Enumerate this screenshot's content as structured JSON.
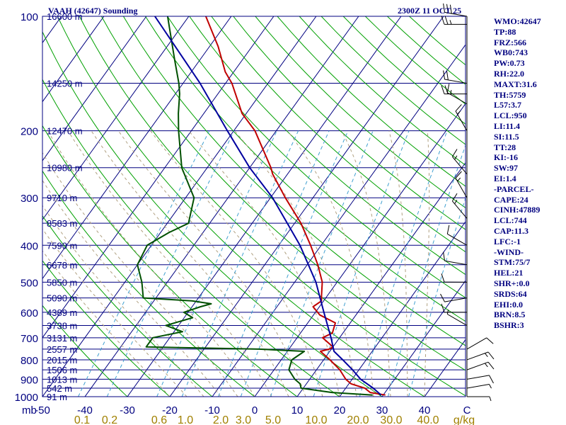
{
  "header": {
    "station": "VAAH (42647) Sounding",
    "time": "2300Z 11 OCT 25"
  },
  "indices": [
    "WMO:42647",
    "TP:88",
    "FRZ:566",
    "WB0:743",
    "PW:0.73",
    "RH:22.0",
    "MAXT:31.6",
    "TH:5759",
    "L57:3.7",
    "LCL:950",
    "LI:11.4",
    "SI:11.5",
    "TT:28",
    "KI:-16",
    "SW:97",
    "EI:1.4",
    "-PARCEL-",
    "CAPE:24",
    "CINH:47889",
    "LCL:744",
    "CAP:11.3",
    "LFC:-1",
    "-WIND-",
    "STM:75/7",
    "HEL:21",
    "SHR+:0.0",
    "SRDS:64",
    "EHI:0.0",
    "BRN:8.5",
    "BSHR:3"
  ],
  "colors": {
    "axis": "#000080",
    "isobar": "#000080",
    "isotherm": "#000080",
    "dry_adiabat": "#00a000",
    "moist_adiabat": "#b0a080",
    "mixing_ratio": "#40a0d0",
    "temperature": "#c00000",
    "dewpoint": "#005000",
    "parcel": "#0000a0",
    "text": "#000080",
    "mixing_labels": "#a08000"
  },
  "chart_data": {
    "type": "skew-t",
    "title": "VAAH (42647) Sounding",
    "subtitle": "2300Z 11 OCT 25",
    "xlim": [
      -50,
      50
    ],
    "ylim": [
      1000,
      100
    ],
    "y_scale": "log",
    "x_unit_label": "C",
    "y_unit_label": "mb",
    "mixing_unit_label": "g/kg",
    "pressure_ticks": [
      "100",
      "200",
      "300",
      "400",
      "500",
      "600",
      "700",
      "800",
      "900",
      "1000"
    ],
    "temp_ticks": [
      "-50",
      "-40",
      "-30",
      "-20",
      "-10",
      "0",
      "10",
      "20",
      "30",
      "40",
      "C"
    ],
    "temp_tick_values": [
      -50,
      -40,
      -30,
      -20,
      -10,
      0,
      10,
      20,
      30,
      40,
      50
    ],
    "mixing_ratio_labels": [
      "0.1",
      "0.2",
      "0.6",
      "1.0",
      "2.0",
      "3.0",
      "5.0",
      "10.0",
      "20.0",
      "30.0",
      "40.0",
      "g/kg"
    ],
    "height_labels": [
      {
        "p": 100,
        "label": "16600 m"
      },
      {
        "p": 150,
        "label": "14250 m"
      },
      {
        "p": 200,
        "label": "12470 m"
      },
      {
        "p": 250,
        "label": "10980 m"
      },
      {
        "p": 300,
        "label": "9710 m"
      },
      {
        "p": 350,
        "label": "8583 m"
      },
      {
        "p": 400,
        "label": "7590 m"
      },
      {
        "p": 450,
        "label": "6678 m"
      },
      {
        "p": 500,
        "label": "5850 m"
      },
      {
        "p": 550,
        "label": "5090 m"
      },
      {
        "p": 600,
        "label": "4389 m"
      },
      {
        "p": 650,
        "label": "3738 m"
      },
      {
        "p": 700,
        "label": "3131 m"
      },
      {
        "p": 750,
        "label": "2557 m"
      },
      {
        "p": 800,
        "label": "2015 m"
      },
      {
        "p": 850,
        "label": "1506 m"
      },
      {
        "p": 900,
        "label": "1013 m"
      },
      {
        "p": 950,
        "label": "542 m"
      },
      {
        "p": 1000,
        "label": "91 m"
      }
    ],
    "series": [
      {
        "name": "temperature",
        "points": [
          [
            990,
            30.5
          ],
          [
            975,
            26.5
          ],
          [
            950,
            24.5
          ],
          [
            925,
            20.5
          ],
          [
            900,
            18.5
          ],
          [
            850,
            15.5
          ],
          [
            800,
            11.5
          ],
          [
            760,
            7.8
          ],
          [
            750,
            9.5
          ],
          [
            740,
            10.0
          ],
          [
            700,
            6.0
          ],
          [
            680,
            7.5
          ],
          [
            640,
            6.5
          ],
          [
            610,
            1.5
          ],
          [
            580,
            -1.5
          ],
          [
            560,
            -0.5
          ],
          [
            540,
            -1.5
          ],
          [
            500,
            -3.5
          ],
          [
            450,
            -7.5
          ],
          [
            400,
            -12.5
          ],
          [
            350,
            -18.5
          ],
          [
            300,
            -26.5
          ],
          [
            260,
            -33.5
          ],
          [
            250,
            -35.0
          ],
          [
            200,
            -45.0
          ],
          [
            180,
            -51.0
          ],
          [
            150,
            -58.5
          ],
          [
            140,
            -62.0
          ],
          [
            120,
            -68.0
          ],
          [
            100,
            -76.0
          ]
        ]
      },
      {
        "name": "dewpoint",
        "points": [
          [
            990,
            27.5
          ],
          [
            975,
            17.5
          ],
          [
            950,
            9.5
          ],
          [
            925,
            8.5
          ],
          [
            900,
            6.5
          ],
          [
            850,
            3.5
          ],
          [
            800,
            2.5
          ],
          [
            760,
            4.0
          ],
          [
            750,
            -7.0
          ],
          [
            740,
            -34.0
          ],
          [
            700,
            -34.0
          ],
          [
            675,
            -28.0
          ],
          [
            650,
            -33.0
          ],
          [
            620,
            -28.0
          ],
          [
            600,
            -31.0
          ],
          [
            580,
            -28.0
          ],
          [
            570,
            -26.0
          ],
          [
            560,
            -31.0
          ],
          [
            550,
            -43.0
          ],
          [
            500,
            -46.0
          ],
          [
            450,
            -50.0
          ],
          [
            400,
            -51.0
          ],
          [
            370,
            -48.0
          ],
          [
            350,
            -45.0
          ],
          [
            300,
            -48.0
          ],
          [
            250,
            -56.0
          ],
          [
            200,
            -63.0
          ],
          [
            180,
            -66.0
          ],
          [
            160,
            -69.0
          ],
          [
            150,
            -71.0
          ],
          [
            130,
            -76.0
          ],
          [
            100,
            -85.0
          ]
        ]
      },
      {
        "name": "parcel",
        "points": [
          [
            990,
            29.5
          ],
          [
            950,
            26.5
          ],
          [
            900,
            22.0
          ],
          [
            850,
            18.5
          ],
          [
            800,
            14.5
          ],
          [
            760,
            11.0
          ],
          [
            700,
            8.0
          ],
          [
            600,
            2.0
          ],
          [
            500,
            -5.0
          ],
          [
            400,
            -15.0
          ],
          [
            300,
            -29.5
          ],
          [
            250,
            -40.0
          ],
          [
            200,
            -51.5
          ],
          [
            150,
            -66.0
          ],
          [
            100,
            -88.0
          ]
        ]
      }
    ],
    "wind_barbs": [
      {
        "p": 100,
        "dir": 280,
        "speed": 30
      },
      {
        "p": 105,
        "dir": 270,
        "speed": 25
      },
      {
        "p": 150,
        "dir": 280,
        "speed": 20
      },
      {
        "p": 160,
        "dir": 270,
        "speed": 20
      },
      {
        "p": 170,
        "dir": 300,
        "speed": 15
      },
      {
        "p": 200,
        "dir": 330,
        "speed": 15
      },
      {
        "p": 260,
        "dir": 320,
        "speed": 15
      },
      {
        "p": 300,
        "dir": 330,
        "speed": 15
      },
      {
        "p": 340,
        "dir": 320,
        "speed": 15
      },
      {
        "p": 400,
        "dir": 300,
        "speed": 10
      },
      {
        "p": 450,
        "dir": 280,
        "speed": 10
      },
      {
        "p": 500,
        "dir": 270,
        "speed": 10
      },
      {
        "p": 550,
        "dir": 260,
        "speed": 10
      },
      {
        "p": 600,
        "dir": 270,
        "speed": 10
      },
      {
        "p": 650,
        "dir": 300,
        "speed": 5
      },
      {
        "p": 750,
        "dir": 60,
        "speed": 10
      },
      {
        "p": 800,
        "dir": 70,
        "speed": 15
      },
      {
        "p": 850,
        "dir": 70,
        "speed": 15
      },
      {
        "p": 900,
        "dir": 80,
        "speed": 10
      },
      {
        "p": 950,
        "dir": 80,
        "speed": 5
      },
      {
        "p": 1000,
        "dir": 90,
        "speed": 5
      }
    ]
  }
}
